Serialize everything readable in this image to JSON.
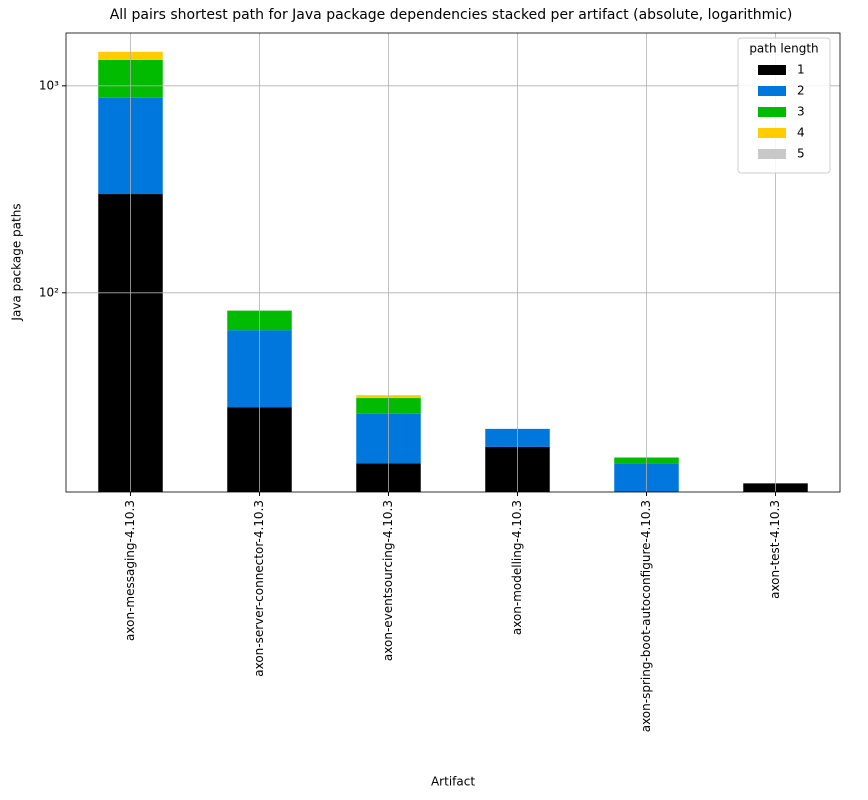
{
  "chart_data": {
    "type": "bar",
    "stacked": true,
    "log_scale": true,
    "grid": true,
    "title": "All pairs shortest path for Java package dependencies stacked per artifact (absolute, logarithmic)",
    "x_label": "Artifact",
    "y_label": "Java package paths",
    "categories": [
      "axon-messaging-4.10.3",
      "axon-server-connector-4.10.3",
      "axon-eventsourcing-4.10.3",
      "axon-modelling-4.10.3",
      "axon-spring-boot-autoconfigure-4.10.3",
      "axon-test-4.10.3"
    ],
    "legend_title": "path length",
    "legend_position": "upper right",
    "series": [
      {
        "name": "1",
        "color": "#000000",
        "values": [
          300,
          28,
          15,
          18,
          0,
          12
        ]
      },
      {
        "name": "2",
        "color": "#0077dd",
        "values": [
          575,
          38,
          11,
          4,
          15,
          0
        ]
      },
      {
        "name": "3",
        "color": "#00bb00",
        "values": [
          460,
          16,
          5,
          0,
          1,
          0
        ]
      },
      {
        "name": "4",
        "color": "#ffcc00",
        "values": [
          125,
          0,
          1,
          0,
          0,
          0
        ]
      },
      {
        "name": "5",
        "color": "#c8c8c8",
        "values": [
          0,
          0,
          0,
          0,
          0,
          0
        ]
      }
    ],
    "ylim": [
      10.9,
      1800
    ],
    "yticks": [
      {
        "value": 100,
        "label": "10²"
      },
      {
        "value": 1000,
        "label": "10³"
      }
    ]
  }
}
